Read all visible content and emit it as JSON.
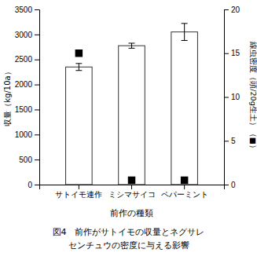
{
  "chart_data": {
    "type": "bar",
    "categories": [
      "サトイモ連作",
      "ミシマサイコ",
      "ペパーミント"
    ],
    "xlabel": "前作の種類",
    "ylabel": "収量（kg/10a）",
    "y2label": "線虫密度（頭/20g生土）（■）",
    "annotations": [
      "図4　前作がサトイモの収量とネグサレ",
      "センチュウの密度に与える影響"
    ],
    "series": [
      {
        "type": "bar",
        "color": "white",
        "values": [
          2350,
          2775,
          3050
        ],
        "errors": [
          70,
          50,
          170
        ]
      },
      {
        "type": "scatter",
        "axis": "y2",
        "marker": "square",
        "color": "black",
        "values": [
          15.0,
          0.5,
          0.5
        ],
        "errors": [
          0.3,
          0.15,
          0.15
        ]
      }
    ],
    "ylim": [
      0,
      3500
    ],
    "yticks": [
      0,
      500,
      1000,
      1500,
      2000,
      2500,
      3000,
      3500
    ],
    "y2lim": [
      0,
      20
    ],
    "y2ticks": [
      0,
      5,
      10,
      15,
      20
    ],
    "grid": false
  }
}
